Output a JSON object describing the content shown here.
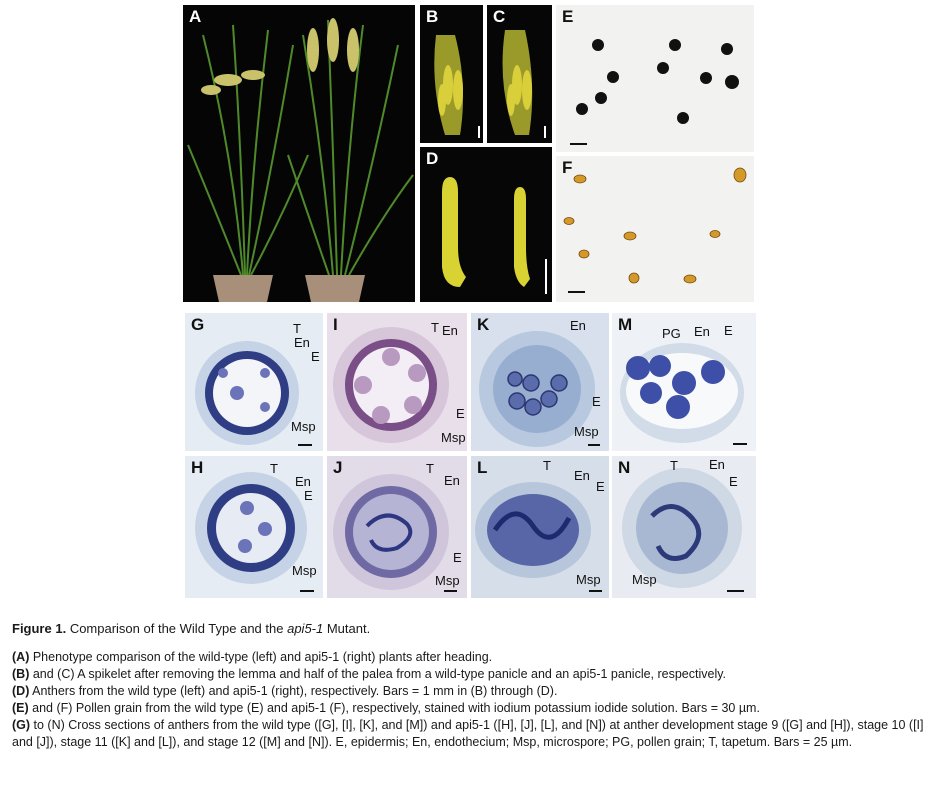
{
  "panels": {
    "A": {
      "label": "A"
    },
    "B": {
      "label": "B"
    },
    "C": {
      "label": "C"
    },
    "D": {
      "label": "D"
    },
    "E": {
      "label": "E"
    },
    "F": {
      "label": "F"
    },
    "G": {
      "label": "G",
      "ann": [
        "T",
        "En",
        "E",
        "Msp"
      ]
    },
    "H": {
      "label": "H",
      "ann": [
        "T",
        "En",
        "E",
        "Msp"
      ]
    },
    "I": {
      "label": "I",
      "ann": [
        "T",
        "En",
        "E",
        "Msp"
      ]
    },
    "J": {
      "label": "J",
      "ann": [
        "T",
        "En",
        "E",
        "Msp"
      ]
    },
    "K": {
      "label": "K",
      "ann": [
        "En",
        "E",
        "Msp"
      ]
    },
    "L": {
      "label": "L",
      "ann": [
        "T",
        "En",
        "E",
        "Msp"
      ]
    },
    "M": {
      "label": "M",
      "ann": [
        "PG",
        "En",
        "E"
      ]
    },
    "N": {
      "label": "N",
      "ann": [
        "T",
        "En",
        "E",
        "Msp"
      ]
    }
  },
  "caption": {
    "title_bold": "Figure 1.",
    "title_pre": "Comparison of the Wild Type and the ",
    "title_italic": "api5-1",
    "title_post": " Mutant.",
    "lines": [
      {
        "bold": "(A)",
        "rest": " Phenotype comparison of the wild-type (left) and api5-1 (right) plants after heading."
      },
      {
        "bold": "(B)",
        "rest": " and (C) A spikelet after removing the lemma and half of the palea from a wild-type panicle and an api5-1 panicle, respectively."
      },
      {
        "bold": "(D)",
        "rest": " Anthers from the wild type (left) and api5-1 (right), respectively. Bars = 1 mm in (B) through (D)."
      },
      {
        "bold": "(E)",
        "rest": " and (F) Pollen grain from the wild type (E) and api5-1 (F), respectively, stained with iodium potassium iodide solution. Bars = 30 µm."
      },
      {
        "bold": "(G)",
        "rest": " to (N) Cross sections of anthers from the wild type ([G], [I], [K], and [M]) and api5-1 ([H], [J], [L], and [N]) at anther development stage 9 ([G] and [H]), stage 10 ([I] and [J]), stage 11 ([K] and [L]), and stage 12 ([M] and [N]). E, epidermis; En, endothecium; Msp, microspore; PG, pollen grain; T, tapetum. Bars = 25 µm."
      }
    ]
  }
}
